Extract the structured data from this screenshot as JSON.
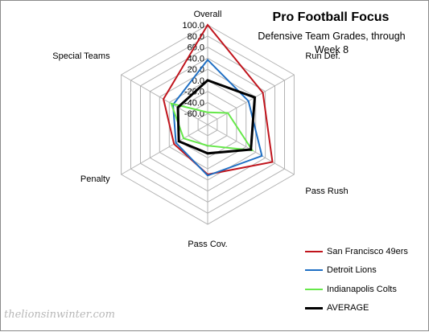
{
  "chart_data": {
    "type": "radar",
    "title": "Pro Football Focus",
    "subtitle_lines": [
      "Defensive Team Grades, through",
      "Week 8"
    ],
    "categories": [
      "Overall",
      "Run Def.",
      "Pass Rush",
      "Pass Cov.",
      "Penalty",
      "Special Teams"
    ],
    "r_ticks": [
      "100.0",
      "80.0",
      "60.0",
      "40.0",
      "20.0",
      "0.0",
      "-20.0",
      "-40.0",
      "-60.0"
    ],
    "r_range": [
      -80,
      100
    ],
    "grid": true,
    "legend_position": "bottom-right",
    "series": [
      {
        "name": "San Francisco 49ers",
        "color": "#c0141c",
        "values": [
          100,
          35,
          55,
          10,
          -10,
          12
        ]
      },
      {
        "name": "Detroit Lions",
        "color": "#1f6fc4",
        "values": [
          37,
          5,
          33,
          12,
          -14,
          -8
        ]
      },
      {
        "name": "Indianapolis Colts",
        "color": "#66e84a",
        "values": [
          -58,
          -38,
          13,
          -42,
          -30,
          -4
        ]
      },
      {
        "name": "AVERAGE",
        "color": "#000000",
        "values": [
          0,
          18,
          10,
          -28,
          -20,
          -18
        ]
      }
    ]
  },
  "watermark": "thelionsinwinter.com"
}
